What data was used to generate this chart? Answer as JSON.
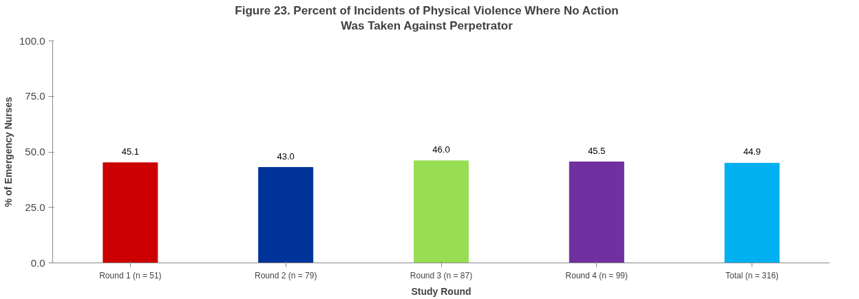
{
  "chart_data": {
    "type": "bar",
    "title": "Figure 23. Percent of Incidents of Physical Violence Where No Action\nWas Taken Against Perpetrator",
    "xlabel": "Study Round",
    "ylabel": "% of Emergency Nurses",
    "categories": [
      "Round 1 (n = 51)",
      "Round 2 (n = 79)",
      "Round 3 (n = 87)",
      "Round 4 (n = 99)",
      "Total (n = 316)"
    ],
    "values": [
      45.1,
      43.0,
      46.0,
      45.5,
      44.9
    ],
    "colors": [
      "#cc0000",
      "#003399",
      "#99dd55",
      "#7030a0",
      "#00b0f0"
    ],
    "value_labels": [
      "45.1",
      "43.0",
      "46.0",
      "45.5",
      "44.9"
    ],
    "ylim": [
      0,
      100
    ],
    "yticks": [
      {
        "value": 0,
        "label": "0.0"
      },
      {
        "value": 25,
        "label": "25.0"
      },
      {
        "value": 50,
        "label": "50.0"
      },
      {
        "value": 75,
        "label": "75.0"
      },
      {
        "value": 100,
        "label": "100.0"
      }
    ],
    "grid": false
  }
}
